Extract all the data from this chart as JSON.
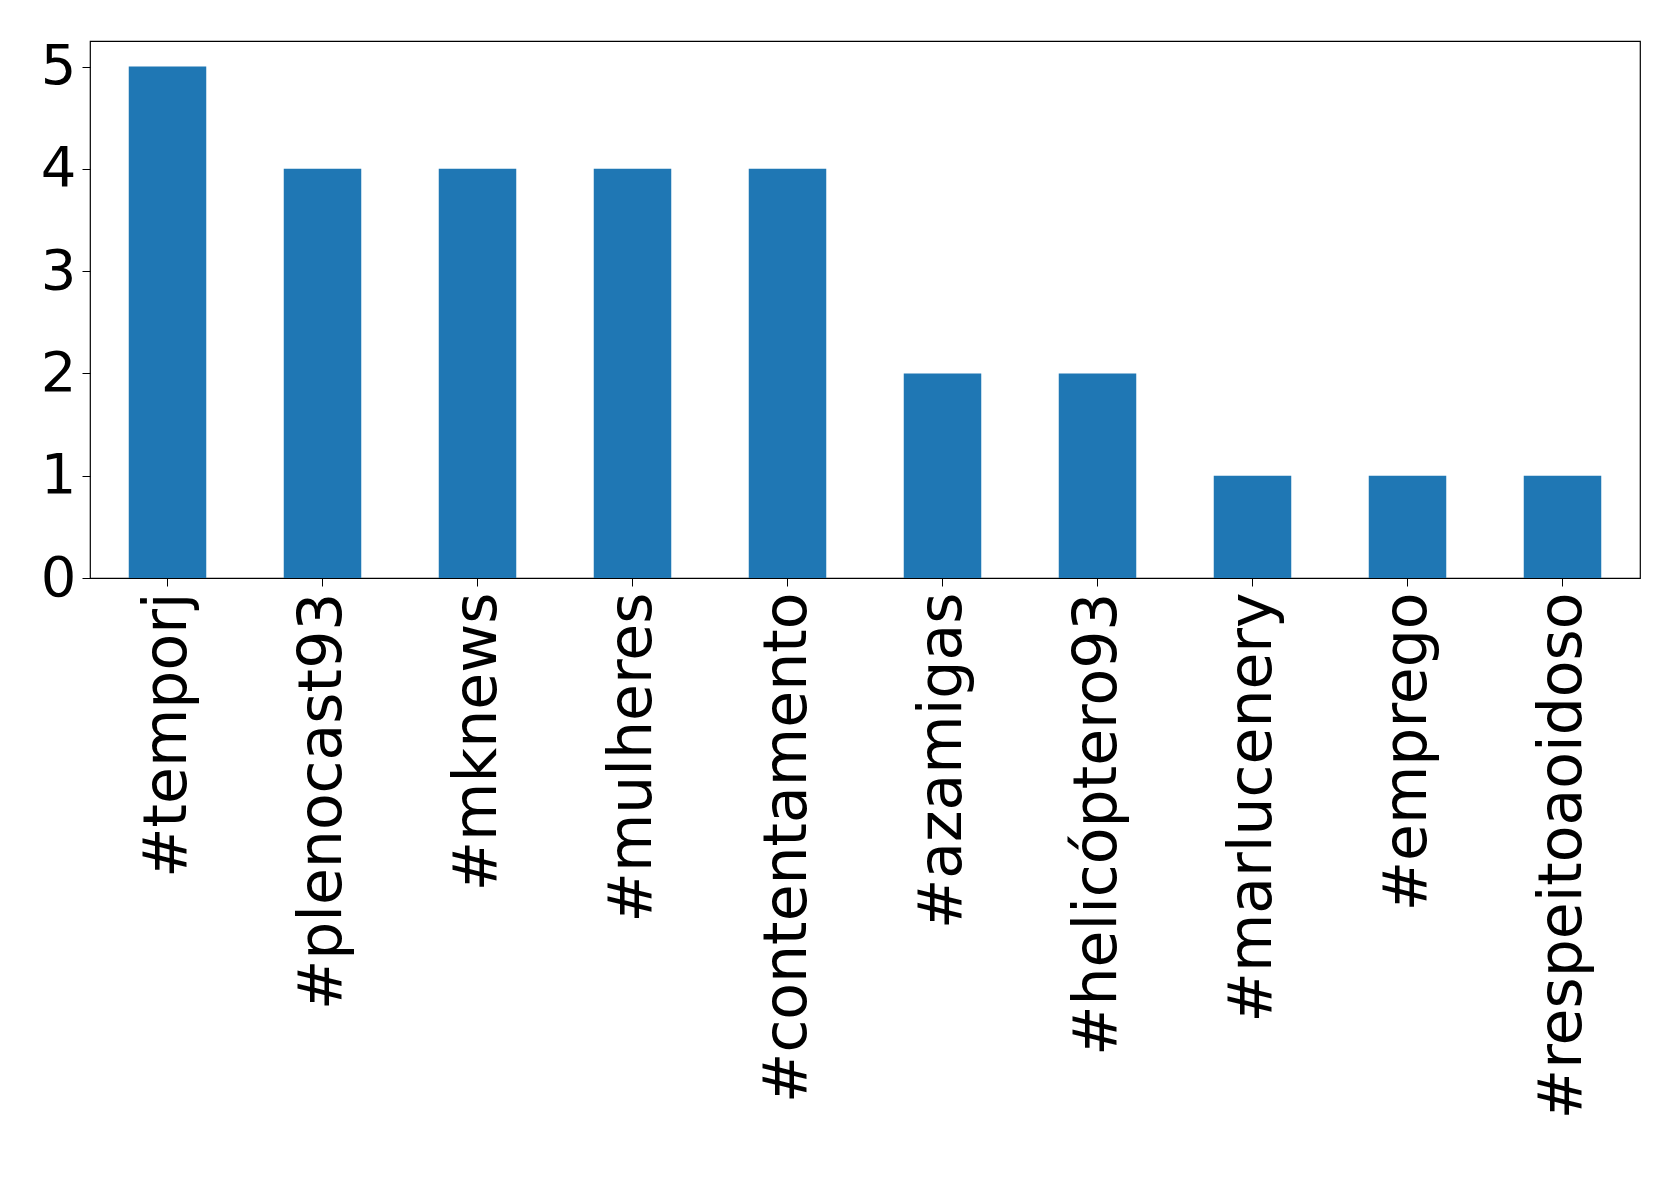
{
  "chart_data": {
    "type": "bar",
    "categories": [
      "#temporj",
      "#plenocast93",
      "#mknews",
      "#mulheres",
      "#contentamento",
      "#azamigas",
      "#helicóptero93",
      "#marlucenery",
      "#emprego",
      "#respeitoaoidoso"
    ],
    "values": [
      5,
      4,
      4,
      4,
      4,
      2,
      2,
      1,
      1,
      1
    ],
    "color": "#1f77b4",
    "ylim": [
      0,
      5.25
    ],
    "yticks": [
      0,
      1,
      2,
      3,
      4,
      5
    ],
    "grid": false
  }
}
